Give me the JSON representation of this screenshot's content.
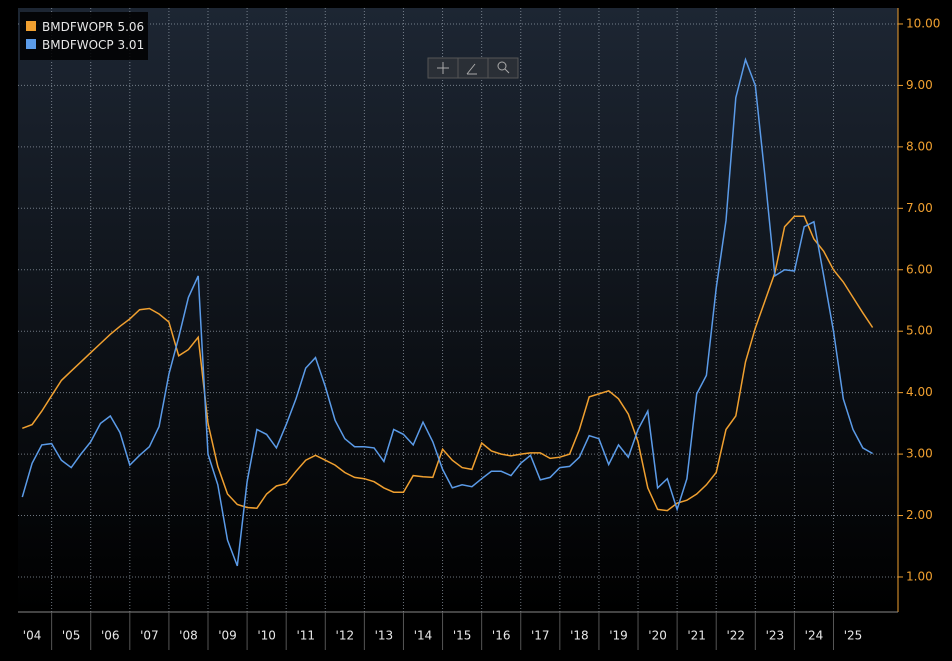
{
  "chart_data": {
    "type": "line",
    "x": [
      2004.25,
      2004.5,
      2004.75,
      2005,
      2005.25,
      2005.5,
      2005.75,
      2006,
      2006.25,
      2006.5,
      2006.75,
      2007,
      2007.25,
      2007.5,
      2007.75,
      2008,
      2008.25,
      2008.5,
      2008.75,
      2009,
      2009.25,
      2009.5,
      2009.75,
      2010,
      2010.25,
      2010.5,
      2010.75,
      2011,
      2011.25,
      2011.5,
      2011.75,
      2012,
      2012.25,
      2012.5,
      2012.75,
      2013,
      2013.25,
      2013.5,
      2013.75,
      2014,
      2014.25,
      2014.5,
      2014.75,
      2015,
      2015.25,
      2015.5,
      2015.75,
      2016,
      2016.25,
      2016.5,
      2016.75,
      2017,
      2017.25,
      2017.5,
      2017.75,
      2018,
      2018.25,
      2018.5,
      2018.75,
      2019,
      2019.25,
      2019.5,
      2019.75,
      2020,
      2020.25,
      2020.5,
      2020.75,
      2021,
      2021.25,
      2021.5,
      2021.75,
      2022,
      2022.25,
      2022.5,
      2022.75,
      2023,
      2023.25,
      2023.5,
      2023.75,
      2024,
      2024.25,
      2024.5,
      2024.75,
      2025,
      2025.25,
      2025.5,
      2025.75,
      2026
    ],
    "series": [
      {
        "name": "BMDFWOPR",
        "color": "#f0a030",
        "values": [
          3.42,
          3.48,
          3.7,
          3.95,
          4.2,
          4.35,
          4.5,
          4.65,
          4.8,
          4.95,
          5.08,
          5.2,
          5.35,
          5.37,
          5.28,
          5.15,
          4.6,
          4.7,
          4.9,
          3.5,
          2.8,
          2.35,
          2.18,
          2.13,
          2.12,
          2.35,
          2.48,
          2.52,
          2.72,
          2.9,
          2.98,
          2.9,
          2.82,
          2.7,
          2.62,
          2.6,
          2.55,
          2.45,
          2.38,
          2.38,
          2.65,
          2.63,
          2.62,
          3.08,
          2.9,
          2.78,
          2.75,
          3.18,
          3.05,
          3.0,
          2.97,
          3.0,
          3.02,
          3.02,
          2.93,
          2.95,
          3.0,
          3.4,
          3.93,
          3.98,
          4.03,
          3.9,
          3.65,
          3.2,
          2.45,
          2.1,
          2.08,
          2.2,
          2.25,
          2.35,
          2.5,
          2.7,
          3.4,
          3.62,
          4.5,
          5.05,
          5.5,
          5.95,
          6.7,
          6.87,
          6.87,
          6.5,
          6.3,
          6.0,
          5.8,
          5.55,
          5.3,
          5.06
        ]
      },
      {
        "name": "BMDFWOCP",
        "color": "#5b9be8",
        "values": [
          2.3,
          2.85,
          3.15,
          3.17,
          2.9,
          2.78,
          3.0,
          3.2,
          3.5,
          3.62,
          3.35,
          2.82,
          2.98,
          3.12,
          3.45,
          4.3,
          4.9,
          5.55,
          5.9,
          3.0,
          2.5,
          1.6,
          1.18,
          2.55,
          3.4,
          3.32,
          3.1,
          3.48,
          3.9,
          4.4,
          4.57,
          4.1,
          3.55,
          3.25,
          3.12,
          3.12,
          3.1,
          2.88,
          3.4,
          3.32,
          3.15,
          3.52,
          3.2,
          2.75,
          2.45,
          2.5,
          2.47,
          2.6,
          2.72,
          2.72,
          2.65,
          2.85,
          2.98,
          2.58,
          2.62,
          2.78,
          2.8,
          2.95,
          3.3,
          3.25,
          2.83,
          3.15,
          2.95,
          3.4,
          3.7,
          2.45,
          2.6,
          2.1,
          2.6,
          3.98,
          4.28,
          5.7,
          6.8,
          8.8,
          9.42,
          9.0,
          7.5,
          5.9,
          6.0,
          5.98,
          6.7,
          6.78,
          5.9,
          5.0,
          3.9,
          3.4,
          3.1,
          3.01
        ]
      }
    ],
    "xlim": [
      2004.14,
      2026.65
    ],
    "xticks": [
      {
        "value": 2004,
        "label": "'04"
      },
      {
        "value": 2005,
        "label": "'05"
      },
      {
        "value": 2006,
        "label": "'06"
      },
      {
        "value": 2007,
        "label": "'07"
      },
      {
        "value": 2008,
        "label": "'08"
      },
      {
        "value": 2009,
        "label": "'09"
      },
      {
        "value": 2010,
        "label": "'10"
      },
      {
        "value": 2011,
        "label": "'11"
      },
      {
        "value": 2012,
        "label": "'12"
      },
      {
        "value": 2013,
        "label": "'13"
      },
      {
        "value": 2014,
        "label": "'14"
      },
      {
        "value": 2015,
        "label": "'15"
      },
      {
        "value": 2016,
        "label": "'16"
      },
      {
        "value": 2017,
        "label": "'17"
      },
      {
        "value": 2018,
        "label": "'18"
      },
      {
        "value": 2019,
        "label": "'19"
      },
      {
        "value": 2020,
        "label": "'20"
      },
      {
        "value": 2021,
        "label": "'21"
      },
      {
        "value": 2022,
        "label": "'22"
      },
      {
        "value": 2023,
        "label": "'23"
      },
      {
        "value": 2024,
        "label": "'24"
      },
      {
        "value": 2025,
        "label": "'25"
      }
    ],
    "ylim": [
      0.43,
      10.26
    ],
    "yticks": [
      {
        "value": 1,
        "label": "1.00"
      },
      {
        "value": 2,
        "label": "2.00"
      },
      {
        "value": 3,
        "label": "3.00"
      },
      {
        "value": 4,
        "label": "4.00"
      },
      {
        "value": 5,
        "label": "5.00"
      },
      {
        "value": 6,
        "label": "6.00"
      },
      {
        "value": 7,
        "label": "7.00"
      },
      {
        "value": 8,
        "label": "8.00"
      },
      {
        "value": 9,
        "label": "9.00"
      },
      {
        "value": 10,
        "label": "10.00"
      }
    ],
    "grid": true,
    "legend": "upper left"
  }
}
